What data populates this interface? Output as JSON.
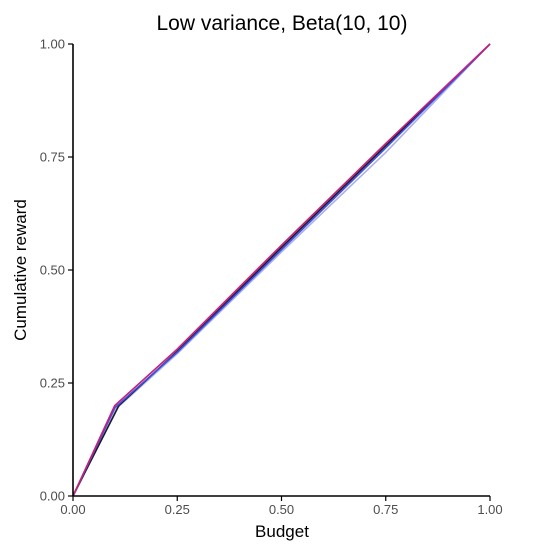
{
  "chart_data": {
    "type": "line",
    "title": "Low variance, Beta(10, 10)",
    "xlabel": "Budget",
    "ylabel": "Cumulative reward",
    "xlim": [
      0,
      1
    ],
    "ylim": [
      0,
      1
    ],
    "x_ticks": [
      "0.00",
      "0.25",
      "0.50",
      "0.75",
      "1.00"
    ],
    "y_ticks": [
      "0.00",
      "0.25",
      "0.50",
      "0.75",
      "1.00"
    ],
    "grid": false,
    "legend": "none",
    "series": [
      {
        "color": "#aab0e8",
        "x": [
          0,
          0.1,
          0.25,
          0.5,
          0.75,
          1.0
        ],
        "y": [
          0,
          0.19,
          0.315,
          0.54,
          0.76,
          1.0
        ]
      },
      {
        "color": "#1a1a2e",
        "x": [
          0,
          0.11,
          0.25,
          0.5,
          0.75,
          1.0
        ],
        "y": [
          0,
          0.2,
          0.32,
          0.55,
          0.775,
          1.0
        ]
      },
      {
        "color": "#3b4ee0",
        "x": [
          0,
          0.1,
          0.25,
          0.5,
          0.75,
          1.0
        ],
        "y": [
          0,
          0.195,
          0.318,
          0.545,
          0.77,
          1.0
        ]
      },
      {
        "color": "#c8207a",
        "x": [
          0,
          0.1,
          0.25,
          0.5,
          0.75,
          1.0
        ],
        "y": [
          0,
          0.2,
          0.325,
          0.555,
          0.78,
          1.0
        ]
      }
    ]
  }
}
